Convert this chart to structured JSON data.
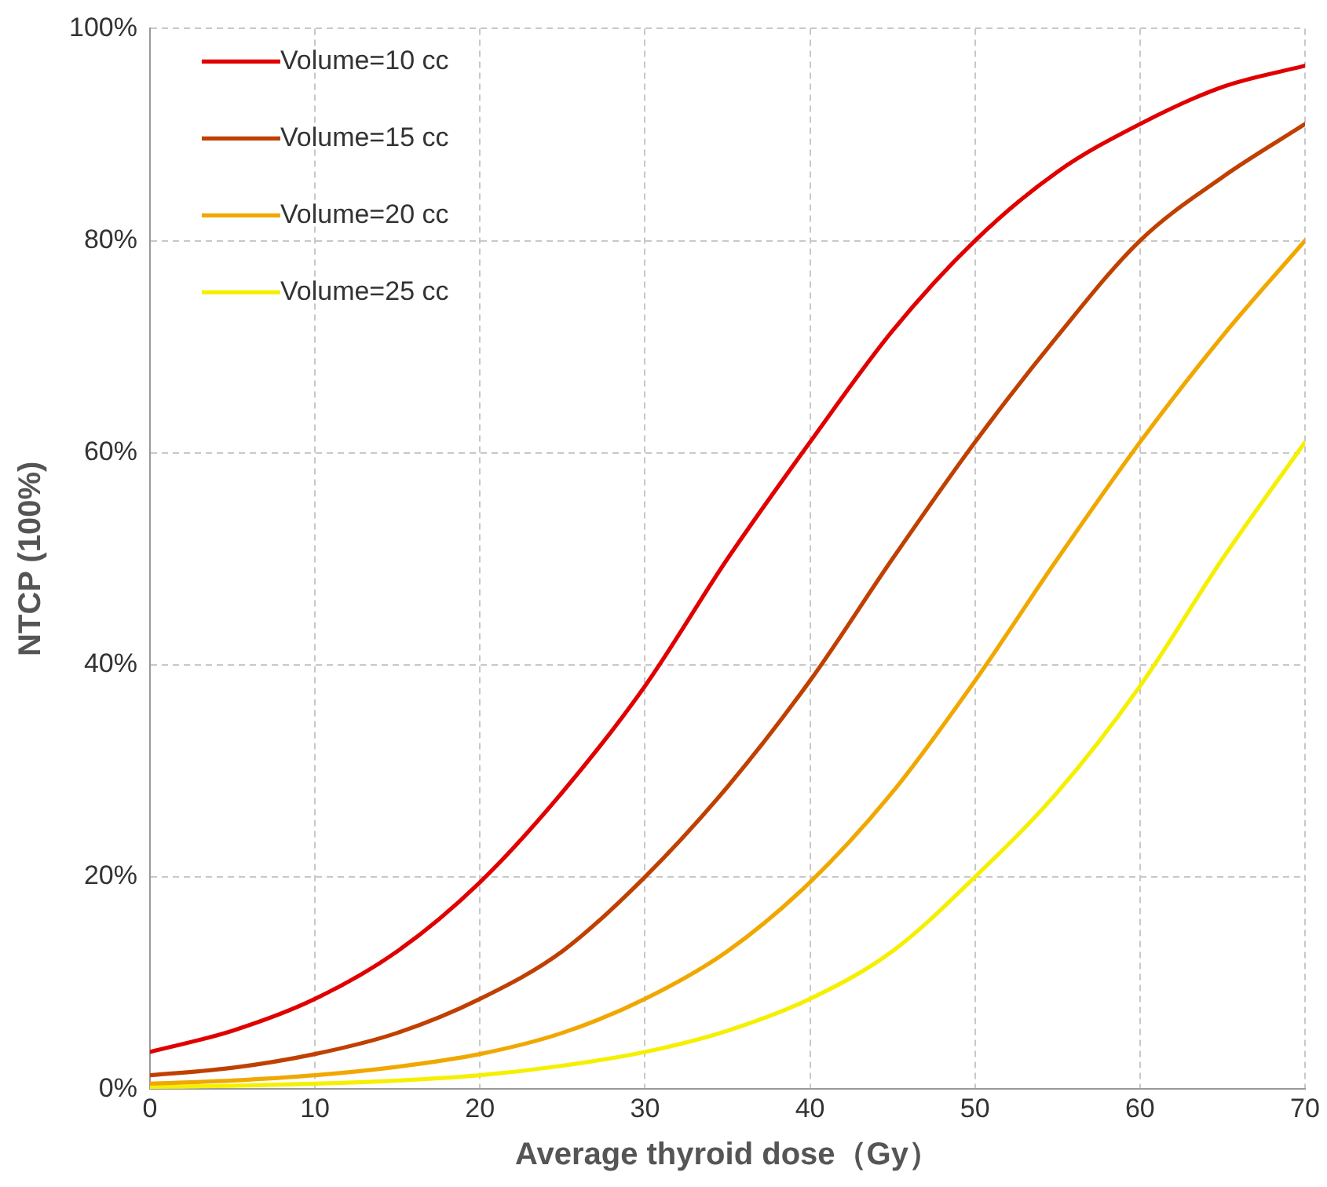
{
  "chart_data": {
    "type": "line",
    "xlabel": "Average thyroid dose（Gy）",
    "ylabel": "NTCP (100%)",
    "x": [
      0,
      5,
      10,
      15,
      20,
      25,
      30,
      35,
      40,
      45,
      50,
      55,
      60,
      65,
      70
    ],
    "series": [
      {
        "name": "Volume=10 cc",
        "color": "#e00000",
        "values": [
          3.5,
          5.5,
          8.5,
          13,
          19.5,
          28,
          38,
          50,
          61,
          71.5,
          80,
          86.5,
          91,
          94.5,
          96.5
        ]
      },
      {
        "name": "Volume=15 cc",
        "color": "#c04000",
        "values": [
          1.3,
          2,
          3.3,
          5.3,
          8.5,
          13,
          20,
          28.5,
          38.5,
          50,
          61,
          71,
          80,
          86,
          91
        ]
      },
      {
        "name": "Volume=20 cc",
        "color": "#f0a800",
        "values": [
          0.5,
          0.8,
          1.3,
          2.1,
          3.3,
          5.3,
          8.5,
          13,
          19.5,
          28,
          38.5,
          50,
          61,
          71,
          80
        ]
      },
      {
        "name": "Volume=25 cc",
        "color": "#f5f000",
        "values": [
          0.2,
          0.3,
          0.5,
          0.8,
          1.3,
          2.2,
          3.5,
          5.5,
          8.5,
          13,
          20,
          28,
          38,
          50,
          61
        ]
      }
    ],
    "xlim": [
      0,
      70
    ],
    "xticks": [
      0,
      10,
      20,
      30,
      40,
      50,
      60,
      70
    ],
    "ylim": [
      0,
      100
    ],
    "yticks": [
      {
        "value": 0,
        "label": "0%"
      },
      {
        "value": 20,
        "label": "20%"
      },
      {
        "value": 40,
        "label": "40%"
      },
      {
        "value": 60,
        "label": "60%"
      },
      {
        "value": 80,
        "label": "80%"
      },
      {
        "value": 100,
        "label": "100%"
      }
    ],
    "grid": true,
    "legend": "top left",
    "marker": "none",
    "line_style": "solid"
  }
}
